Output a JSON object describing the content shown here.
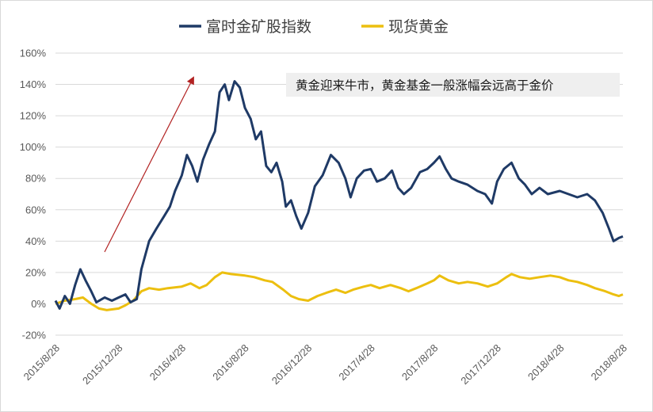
{
  "chart_data": {
    "type": "line",
    "title": "",
    "xlabel": "",
    "ylabel": "",
    "ylim": [
      -20,
      160
    ],
    "y_ticks": [
      "-20%",
      "0%",
      "20%",
      "40%",
      "60%",
      "80%",
      "100%",
      "120%",
      "140%",
      "160%"
    ],
    "x_ticks": [
      "2015/8/28",
      "2015/12/28",
      "2016/4/28",
      "2016/8/28",
      "2016/12/28",
      "2017/4/28",
      "2017/8/28",
      "2017/12/28",
      "2018/4/28",
      "2018/8/28"
    ],
    "grid": true,
    "legend_position": "top-center",
    "annotation": "黄金迎来牛市，黄金基金一般涨幅会远高于金价",
    "colors": {
      "gold_miners": "#1f3a66",
      "gold_spot": "#ecbf0f",
      "arrow": "#b22222",
      "annotation_bg": "#efefef"
    },
    "series": [
      {
        "name": "富时金矿股指数",
        "points": [
          [
            "2015-08-28",
            2
          ],
          [
            "2015-09-05",
            -3
          ],
          [
            "2015-09-15",
            5
          ],
          [
            "2015-09-25",
            0
          ],
          [
            "2015-10-05",
            12
          ],
          [
            "2015-10-15",
            22
          ],
          [
            "2015-10-25",
            15
          ],
          [
            "2015-11-05",
            8
          ],
          [
            "2015-11-15",
            1
          ],
          [
            "2015-12-01",
            4
          ],
          [
            "2015-12-15",
            2
          ],
          [
            "2015-12-28",
            4
          ],
          [
            "2016-01-10",
            6
          ],
          [
            "2016-01-20",
            1
          ],
          [
            "2016-02-01",
            3
          ],
          [
            "2016-02-10",
            22
          ],
          [
            "2016-02-25",
            40
          ],
          [
            "2016-03-10",
            48
          ],
          [
            "2016-03-25",
            56
          ],
          [
            "2016-04-05",
            62
          ],
          [
            "2016-04-15",
            72
          ],
          [
            "2016-04-28",
            82
          ],
          [
            "2016-05-08",
            95
          ],
          [
            "2016-05-18",
            88
          ],
          [
            "2016-05-28",
            78
          ],
          [
            "2016-06-08",
            92
          ],
          [
            "2016-06-20",
            102
          ],
          [
            "2016-07-01",
            110
          ],
          [
            "2016-07-10",
            135
          ],
          [
            "2016-07-20",
            140
          ],
          [
            "2016-07-28",
            130
          ],
          [
            "2016-08-08",
            142
          ],
          [
            "2016-08-18",
            138
          ],
          [
            "2016-08-28",
            125
          ],
          [
            "2016-09-08",
            118
          ],
          [
            "2016-09-18",
            105
          ],
          [
            "2016-09-28",
            110
          ],
          [
            "2016-10-08",
            88
          ],
          [
            "2016-10-18",
            84
          ],
          [
            "2016-10-28",
            90
          ],
          [
            "2016-11-08",
            78
          ],
          [
            "2016-11-15",
            62
          ],
          [
            "2016-11-25",
            66
          ],
          [
            "2016-12-05",
            56
          ],
          [
            "2016-12-15",
            48
          ],
          [
            "2016-12-28",
            58
          ],
          [
            "2017-01-10",
            75
          ],
          [
            "2017-01-25",
            82
          ],
          [
            "2017-02-10",
            95
          ],
          [
            "2017-02-25",
            90
          ],
          [
            "2017-03-10",
            80
          ],
          [
            "2017-03-20",
            68
          ],
          [
            "2017-04-01",
            80
          ],
          [
            "2017-04-15",
            85
          ],
          [
            "2017-04-28",
            86
          ],
          [
            "2017-05-10",
            78
          ],
          [
            "2017-05-25",
            80
          ],
          [
            "2017-06-08",
            85
          ],
          [
            "2017-06-20",
            74
          ],
          [
            "2017-07-01",
            70
          ],
          [
            "2017-07-15",
            74
          ],
          [
            "2017-08-01",
            84
          ],
          [
            "2017-08-15",
            86
          ],
          [
            "2017-08-28",
            90
          ],
          [
            "2017-09-08",
            94
          ],
          [
            "2017-09-20",
            86
          ],
          [
            "2017-10-01",
            80
          ],
          [
            "2017-10-15",
            78
          ],
          [
            "2017-11-01",
            76
          ],
          [
            "2017-11-20",
            72
          ],
          [
            "2017-12-05",
            70
          ],
          [
            "2017-12-18",
            64
          ],
          [
            "2017-12-28",
            78
          ],
          [
            "2018-01-10",
            86
          ],
          [
            "2018-01-25",
            90
          ],
          [
            "2018-02-08",
            80
          ],
          [
            "2018-02-20",
            76
          ],
          [
            "2018-03-05",
            70
          ],
          [
            "2018-03-20",
            74
          ],
          [
            "2018-04-05",
            70
          ],
          [
            "2018-04-28",
            72
          ],
          [
            "2018-05-15",
            70
          ],
          [
            "2018-06-01",
            68
          ],
          [
            "2018-06-20",
            70
          ],
          [
            "2018-07-05",
            66
          ],
          [
            "2018-07-20",
            58
          ],
          [
            "2018-08-01",
            48
          ],
          [
            "2018-08-10",
            40
          ],
          [
            "2018-08-20",
            42
          ],
          [
            "2018-08-28",
            43
          ]
        ]
      },
      {
        "name": "现货黄金",
        "points": [
          [
            "2015-08-28",
            0
          ],
          [
            "2015-09-15",
            2
          ],
          [
            "2015-10-05",
            3
          ],
          [
            "2015-10-20",
            4
          ],
          [
            "2015-11-05",
            0
          ],
          [
            "2015-11-20",
            -3
          ],
          [
            "2015-12-05",
            -4
          ],
          [
            "2015-12-28",
            -3
          ],
          [
            "2016-01-10",
            -1
          ],
          [
            "2016-01-25",
            2
          ],
          [
            "2016-02-10",
            8
          ],
          [
            "2016-02-25",
            10
          ],
          [
            "2016-03-15",
            9
          ],
          [
            "2016-04-01",
            10
          ],
          [
            "2016-04-28",
            11
          ],
          [
            "2016-05-15",
            13
          ],
          [
            "2016-06-01",
            10
          ],
          [
            "2016-06-15",
            12
          ],
          [
            "2016-07-01",
            17
          ],
          [
            "2016-07-15",
            20
          ],
          [
            "2016-08-01",
            19
          ],
          [
            "2016-08-28",
            18
          ],
          [
            "2016-09-15",
            17
          ],
          [
            "2016-10-05",
            15
          ],
          [
            "2016-10-20",
            14
          ],
          [
            "2016-11-10",
            9
          ],
          [
            "2016-11-25",
            5
          ],
          [
            "2016-12-10",
            3
          ],
          [
            "2016-12-28",
            2
          ],
          [
            "2017-01-15",
            5
          ],
          [
            "2017-02-01",
            7
          ],
          [
            "2017-02-20",
            9
          ],
          [
            "2017-03-10",
            7
          ],
          [
            "2017-03-25",
            9
          ],
          [
            "2017-04-15",
            11
          ],
          [
            "2017-04-28",
            12
          ],
          [
            "2017-05-15",
            10
          ],
          [
            "2017-06-05",
            12
          ],
          [
            "2017-06-25",
            10
          ],
          [
            "2017-07-10",
            8
          ],
          [
            "2017-07-25",
            10
          ],
          [
            "2017-08-15",
            13
          ],
          [
            "2017-08-28",
            15
          ],
          [
            "2017-09-08",
            18
          ],
          [
            "2017-09-25",
            15
          ],
          [
            "2017-10-15",
            13
          ],
          [
            "2017-11-01",
            14
          ],
          [
            "2017-11-20",
            13
          ],
          [
            "2017-12-10",
            11
          ],
          [
            "2017-12-28",
            13
          ],
          [
            "2018-01-15",
            17
          ],
          [
            "2018-01-25",
            19
          ],
          [
            "2018-02-10",
            17
          ],
          [
            "2018-03-01",
            16
          ],
          [
            "2018-03-20",
            17
          ],
          [
            "2018-04-10",
            18
          ],
          [
            "2018-04-28",
            17
          ],
          [
            "2018-05-15",
            15
          ],
          [
            "2018-06-01",
            14
          ],
          [
            "2018-06-20",
            12
          ],
          [
            "2018-07-05",
            10
          ],
          [
            "2018-07-25",
            8
          ],
          [
            "2018-08-10",
            6
          ],
          [
            "2018-08-20",
            5
          ],
          [
            "2018-08-28",
            6
          ]
        ]
      }
    ]
  }
}
